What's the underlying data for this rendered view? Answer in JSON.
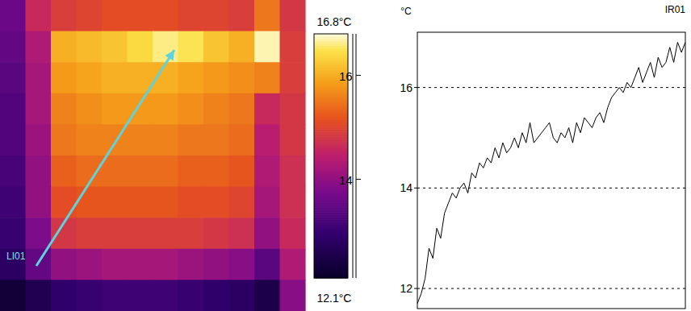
{
  "chart_data": [
    {
      "type": "heatmap",
      "cells": [
        [
          13.6,
          14.6,
          14.9,
          15.0,
          15.1,
          15.1,
          15.1,
          15.0,
          15.0,
          14.9,
          15.5,
          14.8
        ],
        [
          13.5,
          14.3,
          16.0,
          16.1,
          16.2,
          16.4,
          16.6,
          16.5,
          16.2,
          16.0,
          16.7,
          14.9
        ],
        [
          13.4,
          14.2,
          15.8,
          15.9,
          16.0,
          16.0,
          16.0,
          15.9,
          15.8,
          15.7,
          15.6,
          14.9
        ],
        [
          13.3,
          14.2,
          15.6,
          15.7,
          15.8,
          15.8,
          15.8,
          15.7,
          15.6,
          15.5,
          14.6,
          14.8
        ],
        [
          13.3,
          14.1,
          15.5,
          15.6,
          15.6,
          15.6,
          15.6,
          15.5,
          15.5,
          15.4,
          14.4,
          14.8
        ],
        [
          13.2,
          14.0,
          15.3,
          15.4,
          15.4,
          15.4,
          15.4,
          15.3,
          15.3,
          15.2,
          14.3,
          14.7
        ],
        [
          13.1,
          14.0,
          15.1,
          15.2,
          15.2,
          15.2,
          15.2,
          15.1,
          15.1,
          15.0,
          14.2,
          14.7
        ],
        [
          13.0,
          13.8,
          14.8,
          14.9,
          14.9,
          14.9,
          14.9,
          14.9,
          14.8,
          14.7,
          14.0,
          14.6
        ],
        [
          12.8,
          13.5,
          14.0,
          14.1,
          14.2,
          14.2,
          14.2,
          14.1,
          14.0,
          13.9,
          13.4,
          14.3
        ],
        [
          12.3,
          12.6,
          12.9,
          13.0,
          13.1,
          13.1,
          13.1,
          13.0,
          12.9,
          12.8,
          12.5,
          13.9
        ]
      ],
      "colorbar_range": [
        12.1,
        16.8
      ],
      "colorbar_ticks": [
        {
          "value": 16.8,
          "label": "16.8°C"
        },
        16,
        14,
        {
          "value": 12.1,
          "label": "12.1°C"
        }
      ],
      "annotations": [
        "LI01"
      ]
    },
    {
      "type": "line",
      "title": "IR01",
      "y_label": "°C",
      "values": [
        11.7,
        11.9,
        12.2,
        12.8,
        12.6,
        13.2,
        13.0,
        13.5,
        13.7,
        13.9,
        13.8,
        14.0,
        14.1,
        13.9,
        14.3,
        14.2,
        14.5,
        14.4,
        14.6,
        14.5,
        14.8,
        14.6,
        14.9,
        14.7,
        14.8,
        15.0,
        14.8,
        15.1,
        14.9,
        15.3,
        14.9,
        15.0,
        15.1,
        15.2,
        15.3,
        15.0,
        14.9,
        15.1,
        15.0,
        15.2,
        14.9,
        15.3,
        15.1,
        15.4,
        15.3,
        15.2,
        15.4,
        15.5,
        15.3,
        15.6,
        15.8,
        15.9,
        16.0,
        15.9,
        16.1,
        16.0,
        16.2,
        16.4,
        16.1,
        16.3,
        16.5,
        16.2,
        16.6,
        16.4,
        16.5,
        16.8,
        16.5,
        16.9,
        16.7,
        16.9
      ],
      "xlim": [
        0,
        69
      ],
      "ylim": [
        11.6,
        17.1
      ],
      "yticks": [
        12,
        14,
        16
      ],
      "grid": true,
      "tick_labels": "y",
      "color": "#000000"
    }
  ]
}
